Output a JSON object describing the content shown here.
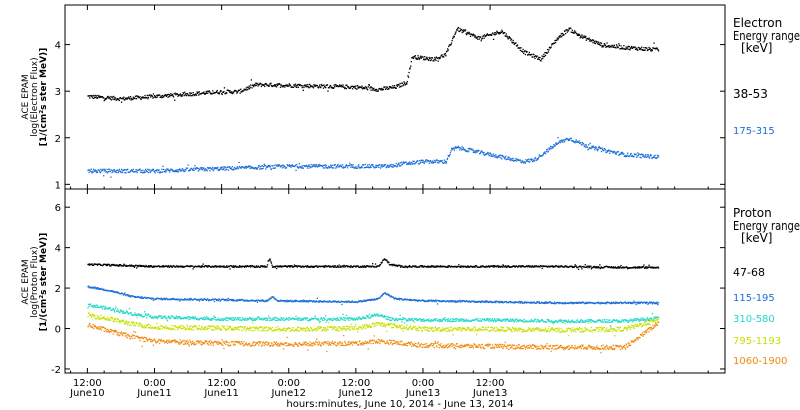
{
  "chart_data": [
    {
      "type": "scatter",
      "panel": "electron",
      "ylabel": [
        "ACE EPAM",
        "log(Electron Flux)",
        "[1/(cm²s ster MeV)]"
      ],
      "ylim": [
        0.9,
        4.85
      ],
      "yticks": [
        1,
        2,
        3,
        4
      ],
      "legend_title": [
        "Electron",
        "Energy range",
        "[keV]"
      ],
      "series": [
        {
          "name": "38-53",
          "color": "#000000",
          "knots_x": [
            0.0,
            6,
            12,
            24,
            27,
            30,
            32,
            48,
            52,
            55,
            57,
            58,
            62,
            64,
            66,
            70,
            74,
            78,
            81,
            84,
            86,
            88,
            92,
            96,
            102
          ],
          "knots_y": [
            2.9,
            2.85,
            2.9,
            3.0,
            3.0,
            3.15,
            3.15,
            3.1,
            3.05,
            3.1,
            3.2,
            3.75,
            3.7,
            3.8,
            4.35,
            4.15,
            4.3,
            3.85,
            3.7,
            4.15,
            4.35,
            4.2,
            4.0,
            3.95,
            3.9
          ]
        },
        {
          "name": "175-315",
          "color": "#1a6fd6",
          "knots_x": [
            0.0,
            12,
            24,
            36,
            48,
            54,
            56,
            60,
            64,
            65,
            66,
            72,
            78,
            80,
            84,
            86,
            90,
            96,
            102
          ],
          "knots_y": [
            1.3,
            1.3,
            1.35,
            1.4,
            1.4,
            1.4,
            1.45,
            1.5,
            1.5,
            1.75,
            1.8,
            1.65,
            1.5,
            1.55,
            1.9,
            2.0,
            1.8,
            1.65,
            1.6
          ]
        }
      ]
    },
    {
      "type": "scatter",
      "panel": "proton",
      "ylabel": [
        "ACE EPAM",
        "log(Proton Flux)",
        "[1/(cm²s ster MeV)]"
      ],
      "ylim": [
        -2.2,
        6.9
      ],
      "yticks": [
        -2,
        0,
        2,
        4,
        6
      ],
      "legend_title": [
        "Proton",
        "Energy range",
        "[keV]"
      ],
      "series": [
        {
          "name": "47-68",
          "color": "#000000",
          "knots_x": [
            0.0,
            6,
            12,
            24,
            32,
            32.5,
            33,
            34,
            48,
            52,
            53,
            54,
            56,
            60,
            72,
            84,
            96,
            102
          ],
          "knots_y": [
            3.2,
            3.15,
            3.1,
            3.1,
            3.1,
            3.5,
            3.1,
            3.1,
            3.1,
            3.1,
            3.5,
            3.2,
            3.1,
            3.1,
            3.1,
            3.1,
            3.05,
            3.05
          ]
        },
        {
          "name": "115-195",
          "color": "#1a6fd6",
          "knots_x": [
            0.0,
            4,
            8,
            12,
            24,
            32,
            33,
            34,
            48,
            52,
            53,
            55,
            60,
            72,
            84,
            96,
            102
          ],
          "knots_y": [
            2.1,
            1.9,
            1.6,
            1.5,
            1.45,
            1.4,
            1.6,
            1.4,
            1.35,
            1.5,
            1.8,
            1.5,
            1.4,
            1.35,
            1.3,
            1.3,
            1.3
          ]
        },
        {
          "name": "310-580",
          "color": "#22d8c8",
          "knots_x": [
            0.0,
            4,
            8,
            12,
            24,
            36,
            48,
            52,
            54,
            60,
            72,
            84,
            96,
            102
          ],
          "knots_y": [
            1.2,
            1.0,
            0.75,
            0.6,
            0.5,
            0.5,
            0.5,
            0.7,
            0.5,
            0.45,
            0.45,
            0.4,
            0.4,
            0.55
          ]
        },
        {
          "name": "795-1193",
          "color": "#c8e000",
          "knots_x": [
            0.0,
            4,
            8,
            12,
            24,
            36,
            48,
            52,
            60,
            72,
            84,
            96,
            102
          ],
          "knots_y": [
            0.7,
            0.5,
            0.25,
            0.1,
            0.05,
            0.0,
            0.05,
            0.25,
            0.0,
            0.0,
            -0.05,
            0.0,
            0.45
          ]
        },
        {
          "name": "1060-1900",
          "color": "#f08a10",
          "knots_x": [
            0.0,
            4,
            8,
            12,
            24,
            36,
            48,
            52,
            60,
            72,
            84,
            96,
            102
          ],
          "knots_y": [
            0.2,
            -0.1,
            -0.4,
            -0.6,
            -0.7,
            -0.75,
            -0.7,
            -0.6,
            -0.8,
            -0.85,
            -0.9,
            -0.9,
            0.3
          ]
        }
      ]
    }
  ],
  "x_axis": {
    "xlim": [
      -4,
      114
    ],
    "ticks": [
      {
        "x": 0,
        "time": "12:00",
        "date": "June10"
      },
      {
        "x": 12,
        "time": "0:00",
        "date": "June11"
      },
      {
        "x": 24,
        "time": "12:00",
        "date": "June11"
      },
      {
        "x": 36,
        "time": "0:00",
        "date": "June12"
      },
      {
        "x": 48,
        "time": "12:00",
        "date": "June12"
      },
      {
        "x": 60,
        "time": "0:00",
        "date": "June13"
      },
      {
        "x": 72,
        "time": "12:00",
        "date": "June13"
      }
    ],
    "label": "hours:minutes, June 10, 2014 - June 13, 2014"
  }
}
